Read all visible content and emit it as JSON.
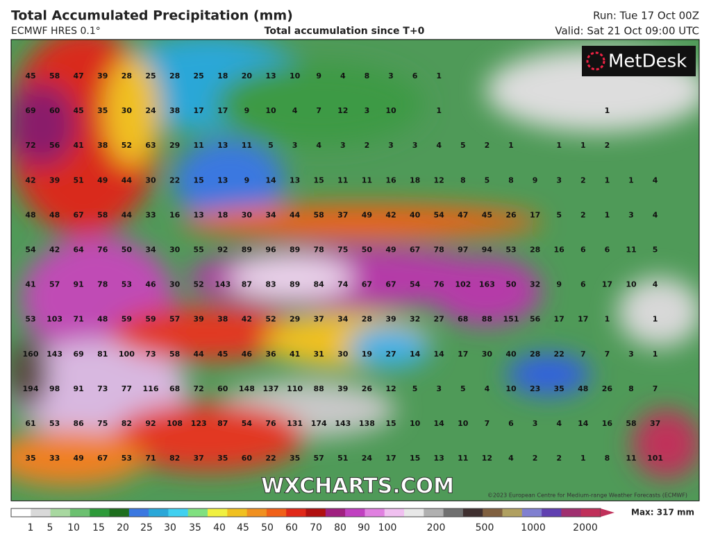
{
  "header": {
    "title": "Total Accumulated Precipitation (mm)",
    "model": "ECMWF HRES 0.1°",
    "subtitle": "Total accumulation since T+0",
    "run": "Run: Tue 17 Oct 00Z",
    "valid": "Valid: Sat 21 Oct 09:00 UTC"
  },
  "logo": "MetDesk",
  "watermark": "WXCHARTS.COM",
  "copyright": "©2023 European Centre for Medium-range Weather Forecasts (ECMWF)",
  "grid": {
    "rows": [
      [
        45,
        58,
        47,
        39,
        28,
        25,
        28,
        25,
        18,
        20,
        13,
        10,
        9,
        4,
        8,
        3,
        6,
        1,
        null,
        null,
        null,
        null,
        null,
        null,
        null,
        null,
        null
      ],
      [
        69,
        60,
        45,
        35,
        30,
        24,
        38,
        17,
        17,
        9,
        10,
        4,
        7,
        12,
        3,
        10,
        null,
        1,
        null,
        null,
        null,
        null,
        null,
        null,
        1,
        null,
        null
      ],
      [
        72,
        56,
        41,
        38,
        52,
        63,
        29,
        11,
        13,
        11,
        5,
        3,
        4,
        3,
        2,
        3,
        3,
        4,
        5,
        2,
        1,
        null,
        1,
        1,
        2,
        null,
        null
      ],
      [
        42,
        39,
        51,
        49,
        44,
        30,
        22,
        15,
        13,
        9,
        14,
        13,
        15,
        11,
        11,
        16,
        18,
        12,
        8,
        5,
        8,
        9,
        3,
        2,
        1,
        1,
        4
      ],
      [
        48,
        48,
        67,
        58,
        44,
        33,
        16,
        13,
        18,
        30,
        34,
        44,
        58,
        37,
        49,
        42,
        40,
        54,
        47,
        45,
        26,
        17,
        5,
        2,
        1,
        3,
        4
      ],
      [
        54,
        42,
        64,
        76,
        50,
        34,
        30,
        55,
        92,
        89,
        96,
        89,
        78,
        75,
        50,
        49,
        67,
        78,
        97,
        94,
        53,
        28,
        16,
        6,
        6,
        11,
        5
      ],
      [
        41,
        57,
        91,
        78,
        53,
        46,
        30,
        52,
        143,
        87,
        83,
        89,
        84,
        74,
        67,
        67,
        54,
        76,
        102,
        163,
        50,
        32,
        9,
        6,
        17,
        10,
        4
      ],
      [
        53,
        103,
        71,
        48,
        59,
        59,
        57,
        39,
        38,
        42,
        52,
        29,
        37,
        34,
        28,
        39,
        32,
        27,
        68,
        88,
        151,
        56,
        17,
        17,
        1,
        null,
        1
      ],
      [
        160,
        143,
        69,
        81,
        100,
        73,
        58,
        44,
        45,
        46,
        36,
        41,
        31,
        30,
        19,
        27,
        14,
        14,
        17,
        30,
        40,
        28,
        22,
        7,
        7,
        3,
        1
      ],
      [
        194,
        98,
        91,
        73,
        77,
        116,
        68,
        72,
        60,
        148,
        137,
        110,
        88,
        39,
        26,
        12,
        5,
        3,
        5,
        4,
        10,
        23,
        35,
        48,
        26,
        8,
        7
      ],
      [
        61,
        53,
        86,
        75,
        82,
        92,
        108,
        123,
        87,
        54,
        76,
        131,
        174,
        143,
        138,
        15,
        10,
        14,
        10,
        7,
        6,
        3,
        4,
        14,
        16,
        58,
        37
      ],
      [
        35,
        33,
        49,
        67,
        53,
        71,
        82,
        37,
        35,
        60,
        22,
        35,
        57,
        51,
        24,
        17,
        15,
        13,
        11,
        12,
        4,
        2,
        2,
        1,
        8,
        11,
        101
      ]
    ]
  },
  "colorbar": {
    "labels": [
      1,
      5,
      10,
      15,
      20,
      25,
      30,
      35,
      40,
      45,
      50,
      60,
      70,
      80,
      90,
      100,
      200,
      500,
      1000,
      2000
    ],
    "max": "Max: 317 mm"
  }
}
